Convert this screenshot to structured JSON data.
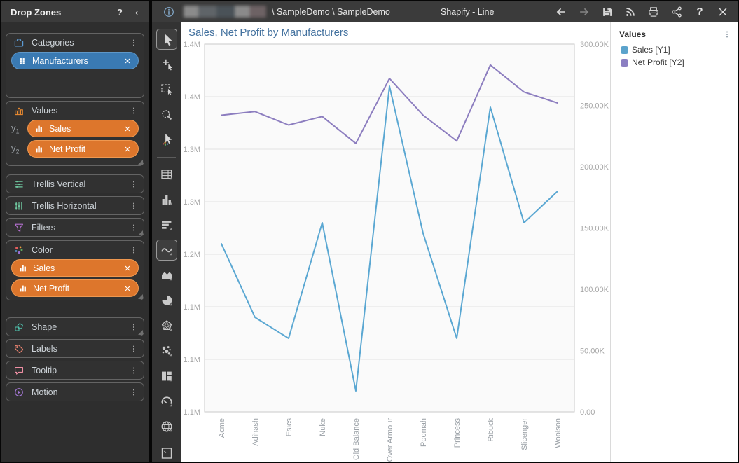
{
  "topbar": {
    "breadcrumb": "\\ SampleDemo \\ SampleDemo",
    "title": "Shapify - Line",
    "left_icon": "info-icon",
    "icons": [
      {
        "name": "back-icon",
        "disabled": false
      },
      {
        "name": "forward-icon",
        "disabled": true
      },
      {
        "name": "save-icon",
        "disabled": false
      },
      {
        "name": "feed-icon",
        "disabled": false
      },
      {
        "name": "print-icon",
        "disabled": false
      },
      {
        "name": "share-icon",
        "disabled": false
      },
      {
        "name": "help-icon",
        "disabled": false,
        "label": "?"
      },
      {
        "name": "close-icon",
        "disabled": false
      }
    ]
  },
  "sidebar": {
    "title": "Drop Zones",
    "help_label": "?",
    "collapse_label": "‹",
    "zones": [
      {
        "label": "Categories",
        "icon": "briefcase-icon",
        "icon_color": "#5b9bd5",
        "variant": "large",
        "pills": [
          {
            "label": "Manufacturers",
            "color": "blue",
            "icon": "drag-handle-icon"
          }
        ]
      },
      {
        "label": "Values",
        "icon": "values-bars-icon",
        "icon_color": "#e8892f",
        "variant": "values",
        "resize": true,
        "pills": [
          {
            "label": "Sales",
            "color": "orange",
            "icon": "mini-bars-icon",
            "prefix": "y",
            "prefix_sub": "1"
          },
          {
            "label": "Net Profit",
            "color": "orange",
            "icon": "mini-bars-icon",
            "prefix": "y",
            "prefix_sub": "2"
          }
        ]
      },
      {
        "label": "Trellis Vertical",
        "icon": "trellis-vertical-icon",
        "icon_color": "#6fc79f",
        "variant": "small"
      },
      {
        "label": "Trellis Horizontal",
        "icon": "trellis-horizontal-icon",
        "icon_color": "#6fc79f",
        "variant": "small"
      },
      {
        "label": "Filters",
        "icon": "filter-icon",
        "icon_color": "#b470cf",
        "variant": "small",
        "resize": true
      },
      {
        "label": "Color",
        "icon": "color-dots-icon",
        "icon_color": "",
        "variant": "color",
        "resize": true,
        "pills": [
          {
            "label": "Sales",
            "color": "orange",
            "icon": "mini-bars-icon"
          },
          {
            "label": "Net Profit",
            "color": "orange",
            "icon": "mini-bars-icon"
          }
        ]
      },
      {
        "label": "Shape",
        "icon": "shape-icon",
        "icon_color": "#4fc2ad",
        "variant": "small",
        "resize": true
      },
      {
        "label": "Labels",
        "icon": "tag-icon",
        "icon_color": "#e8826f",
        "variant": "small"
      },
      {
        "label": "Tooltip",
        "icon": "tooltip-icon",
        "icon_color": "#ef8fa4",
        "variant": "small"
      },
      {
        "label": "Motion",
        "icon": "motion-icon",
        "icon_color": "#a678d8",
        "variant": "small"
      }
    ]
  },
  "toolbar": {
    "tools": [
      {
        "name": "pointer-tool",
        "selected": true
      },
      {
        "name": "add-point-tool"
      },
      {
        "name": "marquee-select-tool"
      },
      {
        "name": "zoom-select-tool"
      },
      {
        "name": "multi-select-tool"
      },
      {
        "divider": true
      },
      {
        "name": "table-chart-type"
      },
      {
        "name": "bar-chart-type"
      },
      {
        "name": "hbar-chart-type"
      },
      {
        "name": "line-chart-type",
        "selected": true
      },
      {
        "name": "area-chart-type"
      },
      {
        "name": "pie-chart-type"
      },
      {
        "name": "radar-chart-type"
      },
      {
        "name": "scatter-chart-type"
      },
      {
        "name": "treemap-chart-type"
      },
      {
        "name": "gauge-chart-type"
      },
      {
        "name": "map-chart-type"
      },
      {
        "name": "clipped-tool"
      }
    ]
  },
  "chart_data": {
    "type": "line",
    "title": "Sales, Net Profit by Manufacturers",
    "categories": [
      "Acme",
      "Adihash",
      "Esics",
      "Nuke",
      "Old Balance",
      "Over Armour",
      "Poomah",
      "Princess",
      "Ribuck",
      "Slicenger",
      "Woolson"
    ],
    "series": [
      {
        "name": "Sales",
        "axis": "Y1",
        "unit": "M",
        "color": "#5aa7d2",
        "values": [
          1.21,
          1.14,
          1.12,
          1.23,
          1.07,
          1.36,
          1.22,
          1.12,
          1.34,
          1.23,
          1.26
        ]
      },
      {
        "name": "Net Profit",
        "axis": "Y2",
        "unit": "K",
        "color": "#8c7dbf",
        "values": [
          242,
          245,
          234,
          241,
          219,
          272,
          242,
          221,
          283,
          261,
          252
        ]
      }
    ],
    "y1_axis": {
      "ticks": [
        "1.4M",
        "1.4M",
        "1.3M",
        "1.3M",
        "1.2M",
        "1.1M",
        "1.1M",
        "1.1M"
      ],
      "top_value": 1.4,
      "bottom_value": 1.05
    },
    "y2_axis": {
      "ticks": [
        "300.00K",
        "250.00K",
        "200.00K",
        "150.00K",
        "100.00K",
        "50.00K",
        "0.00"
      ],
      "top_value": 300,
      "bottom_value": 0
    },
    "grid": true,
    "legend_position": "right"
  },
  "legend": {
    "title": "Values",
    "items": [
      {
        "label": "Sales [Y1]",
        "color": "#5ba3cc"
      },
      {
        "label": "Net Profit [Y2]",
        "color": "#8b7fc2"
      }
    ]
  }
}
